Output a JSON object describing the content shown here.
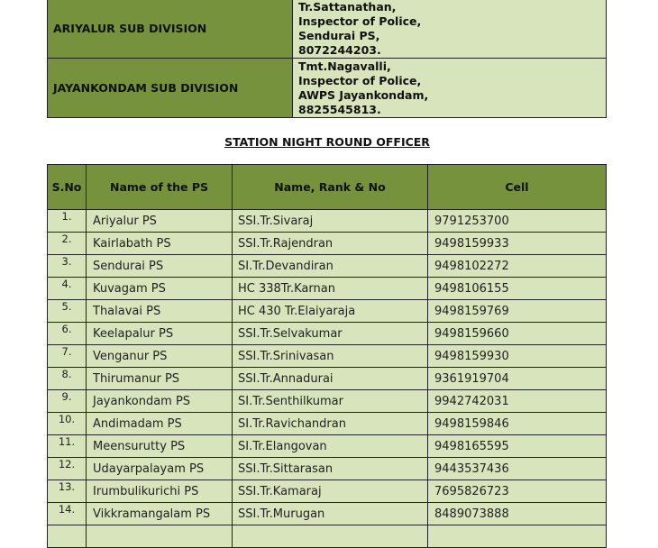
{
  "subdivisions": [
    {
      "name": "ARIYALUR SUB DIVISION",
      "officer": [
        "Tr.Sattanathan,",
        "Inspector of Police,",
        "Sendurai PS,",
        "8072244203."
      ]
    },
    {
      "name": "JAYANKONDAM SUB DIVISION",
      "officer": [
        "Tmt.Nagavalli,",
        "Inspector of Police,",
        "AWPS Jayankondam,",
        "8825545813."
      ]
    }
  ],
  "section_title": "STATION NIGHT ROUND OFFICER",
  "table": {
    "headers": [
      "S.No",
      "Name of the PS",
      "Name, Rank & No",
      "Cell"
    ],
    "rows": [
      [
        "1.",
        "Ariyalur  PS",
        "SSI.Tr.Sivaraj",
        "9791253700"
      ],
      [
        "2.",
        "Kairlabath PS",
        "SSI.Tr.Rajendran",
        "9498159933"
      ],
      [
        "3.",
        "Sendurai PS",
        "SI.Tr.Devandiran",
        "9498102272"
      ],
      [
        "4.",
        "Kuvagam PS",
        "HC 338Tr.Karnan",
        "9498106155"
      ],
      [
        "5.",
        "Thalavai  PS",
        "HC 430 Tr.Elaiyaraja",
        "9498159769"
      ],
      [
        "6.",
        "Keelapalur PS",
        "SSI.Tr.Selvakumar",
        "9498159660"
      ],
      [
        "7.",
        "Venganur PS",
        "SSI.Tr.Srinivasan",
        "9498159930"
      ],
      [
        "8.",
        "Thirumanur PS",
        "SSI.Tr.Annadurai",
        "9361919704"
      ],
      [
        "9.",
        "Jayankondam PS",
        "SI.Tr.Senthilkumar",
        "9942742031"
      ],
      [
        "10.",
        "Andimadam PS",
        "SI.Tr.Ravichandran",
        "9498159846"
      ],
      [
        "11.",
        "Meensurutty PS",
        "SI.Tr.Elangovan",
        "9498165595"
      ],
      [
        "12.",
        "Udayarpalayam PS",
        "SSI.Tr.Sittarasan",
        "9443537436"
      ],
      [
        "13.",
        "Irumbulikurichi PS",
        "SSI.Tr.Kamaraj",
        "7695826723"
      ],
      [
        "14.",
        "Vikkramangalam PS",
        "SSI.Tr.Murugan",
        "8489073888"
      ]
    ]
  },
  "colors": {
    "header_green": "#76923c",
    "cell_green": "#d7e4bc"
  }
}
